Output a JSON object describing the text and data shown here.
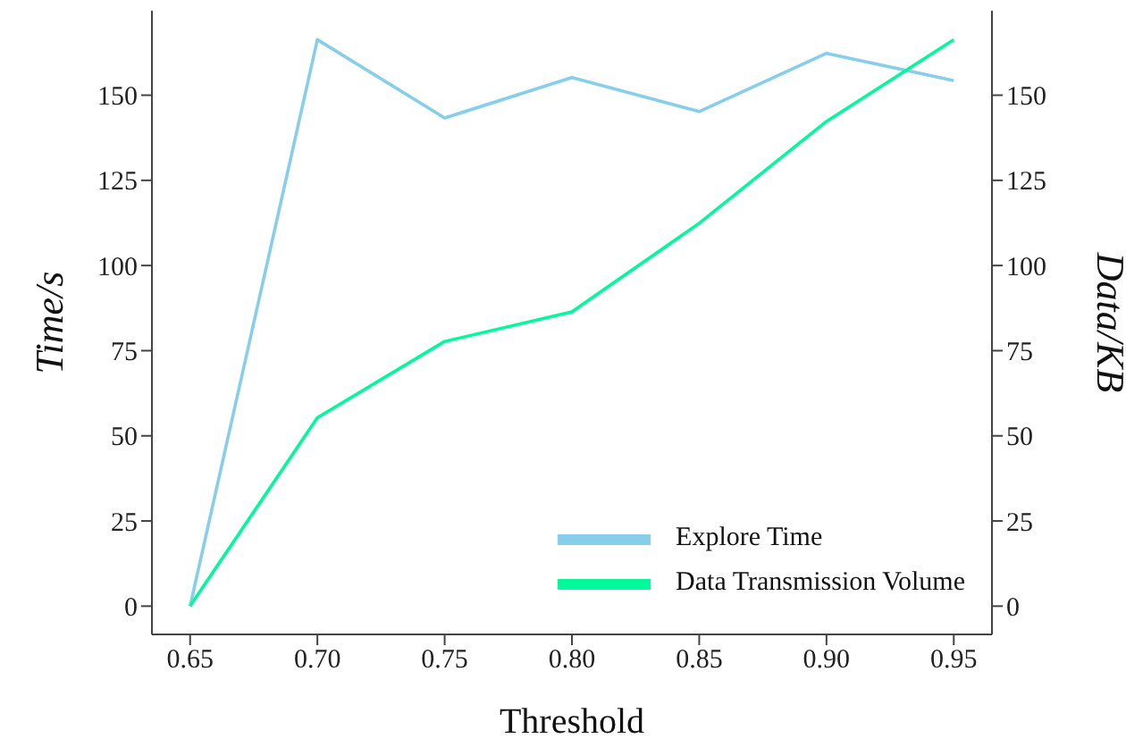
{
  "chart_data": {
    "type": "line",
    "xlabel": "Threshold",
    "ylabel": "Time/s",
    "y2label": "Data/KB",
    "x": [
      0.65,
      0.7,
      0.75,
      0.8,
      0.85,
      0.9,
      0.95
    ],
    "series": [
      {
        "name": "Explore Time",
        "color": "#87ceeb",
        "values": [
          0,
          166.3,
          143.3,
          155.2,
          145.2,
          162.3,
          154.3
        ]
      },
      {
        "name": "Data Transmission Volume",
        "color": "#00fa9a",
        "axis": "y2",
        "values": [
          0,
          55.3,
          77.7,
          86.4,
          112.4,
          142.3,
          166.3
        ]
      }
    ],
    "xlim": [
      0.635,
      0.965
    ],
    "xticks": [
      {
        "value": 0.65,
        "label": "0.65"
      },
      {
        "value": 0.7,
        "label": "0.70"
      },
      {
        "value": 0.75,
        "label": "0.75"
      },
      {
        "value": 0.8,
        "label": "0.80"
      },
      {
        "value": 0.85,
        "label": "0.85"
      },
      {
        "value": 0.9,
        "label": "0.90"
      },
      {
        "value": 0.95,
        "label": "0.95"
      }
    ],
    "ylim": [
      -8.3,
      174.8
    ],
    "yticks": [
      0,
      25,
      50,
      75,
      100,
      125,
      150
    ],
    "y2lim": [
      -8.3,
      174.8
    ],
    "y2ticks": [
      0,
      25,
      50,
      75,
      100,
      125,
      150
    ],
    "legend": "bottom right",
    "grid": false,
    "marker": "none",
    "line_style": "solid"
  }
}
